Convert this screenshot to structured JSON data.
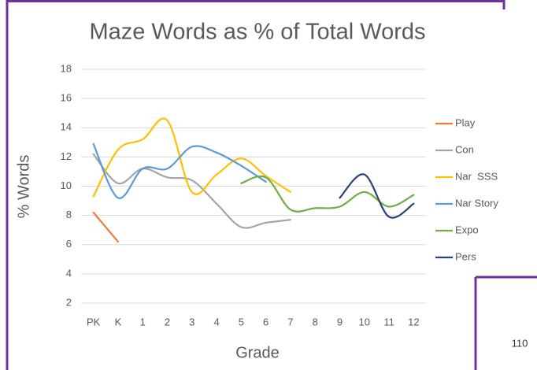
{
  "chart_data": {
    "type": "line",
    "title": "Maze Words as % of Total Words",
    "x_label": "Grade",
    "y_label": "% Words",
    "categories": [
      "PK",
      "K",
      "1",
      "2",
      "3",
      "4",
      "5",
      "6",
      "7",
      "8",
      "9",
      "10",
      "11",
      "12"
    ],
    "ylim": [
      2,
      18
    ],
    "yticks": [
      2,
      4,
      6,
      8,
      10,
      12,
      14,
      16,
      18
    ],
    "grid": true,
    "legend": "right",
    "smooth": true,
    "series": [
      {
        "name": "Play",
        "color": "#ed7d31",
        "values": [
          8.2,
          6.2,
          null,
          null,
          null,
          null,
          null,
          null,
          null,
          null,
          null,
          null,
          null,
          null
        ]
      },
      {
        "name": "Con",
        "color": "#a5a5a5",
        "values": [
          12.2,
          10.2,
          11.2,
          10.6,
          10.4,
          8.8,
          7.2,
          7.5,
          7.7,
          null,
          null,
          null,
          null,
          null
        ]
      },
      {
        "name": "Nar  SSS",
        "color": "#ffc000",
        "values": [
          9.3,
          12.5,
          13.2,
          14.5,
          9.6,
          10.8,
          11.9,
          10.7,
          9.6,
          null,
          null,
          null,
          null,
          null
        ]
      },
      {
        "name": "Nar Story",
        "color": "#5b9bd5",
        "values": [
          12.9,
          9.2,
          11.2,
          11.2,
          12.7,
          12.3,
          11.4,
          10.3,
          null,
          null,
          null,
          null,
          null,
          null
        ]
      },
      {
        "name": "Expo",
        "color": "#70ad47",
        "values": [
          null,
          null,
          null,
          null,
          null,
          null,
          10.2,
          10.6,
          8.4,
          8.5,
          8.6,
          9.6,
          8.6,
          9.4
        ]
      },
      {
        "name": "Pers",
        "color": "#264478",
        "values": [
          null,
          null,
          null,
          null,
          null,
          null,
          null,
          null,
          null,
          null,
          9.2,
          10.8,
          7.9,
          8.8
        ]
      }
    ]
  },
  "page_number": "110"
}
